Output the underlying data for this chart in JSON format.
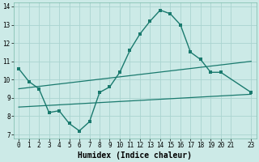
{
  "title": "",
  "xlabel": "Humidex (Indice chaleur)",
  "bg_color": "#cceae7",
  "grid_color": "#aad4d0",
  "line_color": "#1a7a6e",
  "xlim": [
    -0.5,
    23.5
  ],
  "ylim": [
    6.8,
    14.2
  ],
  "yticks": [
    7,
    8,
    9,
    10,
    11,
    12,
    13,
    14
  ],
  "xticks": [
    0,
    1,
    2,
    3,
    4,
    5,
    6,
    7,
    8,
    9,
    10,
    11,
    12,
    13,
    14,
    15,
    16,
    17,
    18,
    19,
    20,
    21,
    23
  ],
  "xtick_labels": [
    "0",
    "1",
    "2",
    "3",
    "4",
    "5",
    "6",
    "7",
    "8",
    "9",
    "10",
    "11",
    "12",
    "13",
    "14",
    "15",
    "16",
    "17",
    "18",
    "19",
    "20",
    "21",
    "23"
  ],
  "line1_x": [
    0,
    1,
    2,
    3,
    4,
    5,
    6,
    7,
    8,
    9,
    10,
    11,
    12,
    13,
    14,
    15,
    16,
    17,
    18,
    19,
    20,
    23
  ],
  "line1_y": [
    10.6,
    9.9,
    9.5,
    8.2,
    8.3,
    7.6,
    7.2,
    7.7,
    9.3,
    9.6,
    10.4,
    11.6,
    12.5,
    13.2,
    13.8,
    13.6,
    13.0,
    11.5,
    11.1,
    10.4,
    10.4,
    9.3
  ],
  "line2_x": [
    0,
    23
  ],
  "line2_y": [
    9.5,
    11.0
  ],
  "line3_x": [
    0,
    23
  ],
  "line3_y": [
    8.5,
    9.2
  ]
}
